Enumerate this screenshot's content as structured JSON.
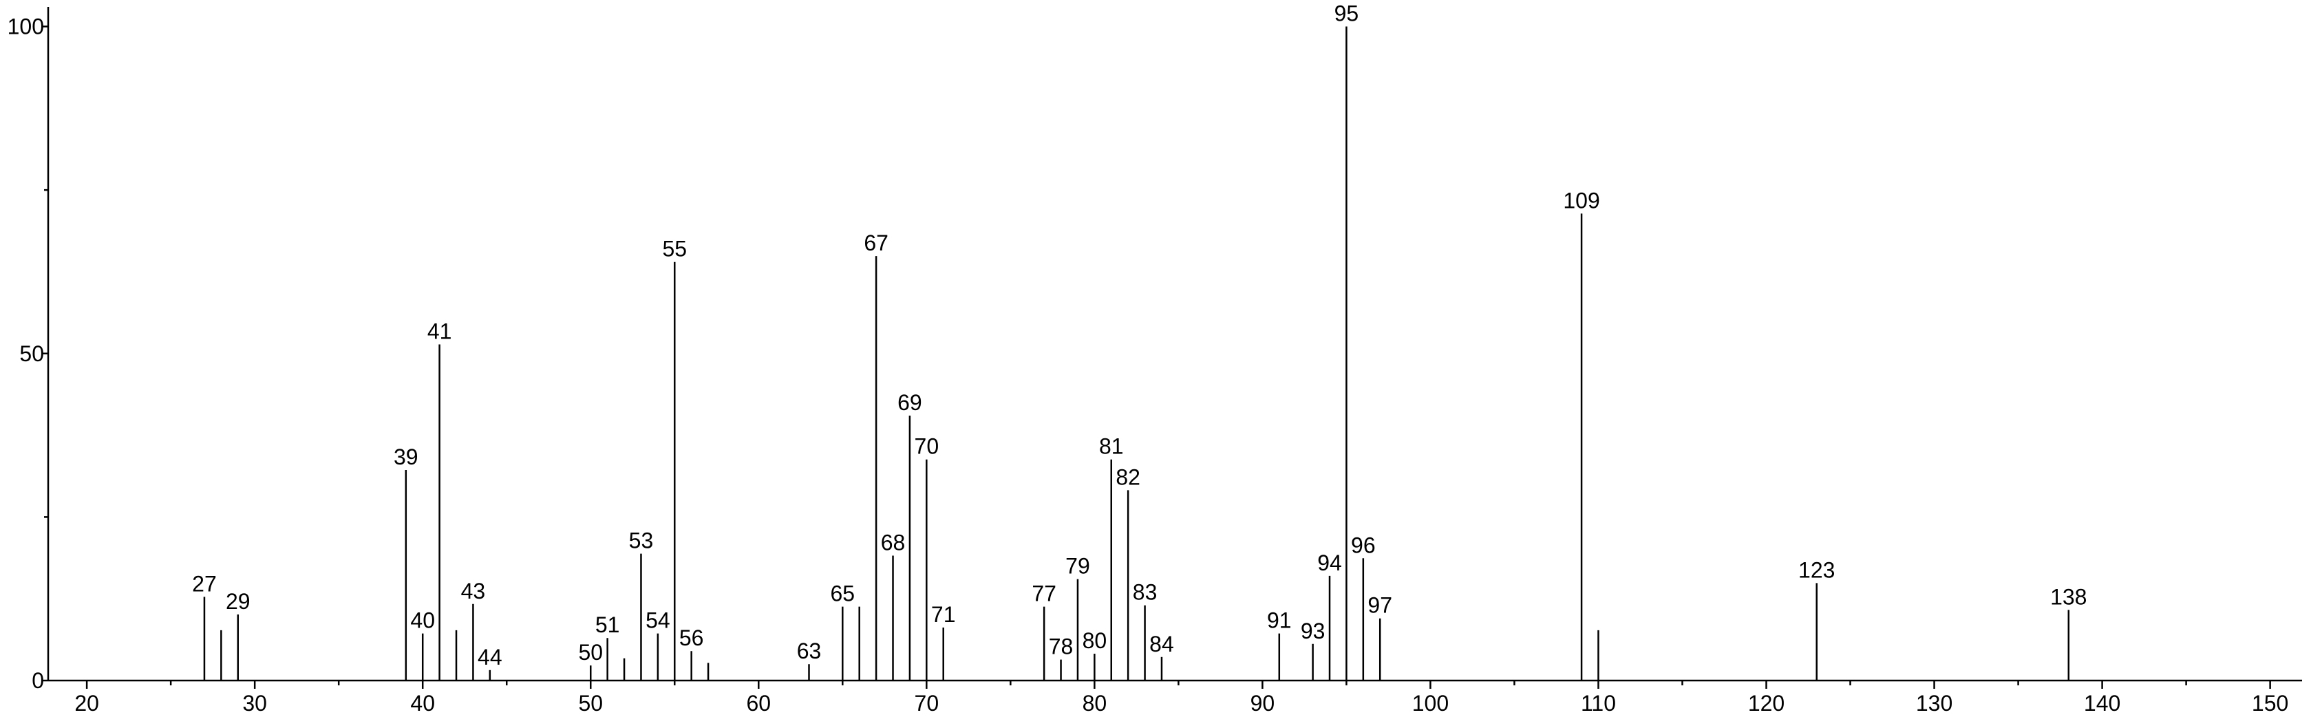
{
  "chart_data": {
    "type": "stem",
    "color": "#000000",
    "x": [
      27,
      28,
      29,
      39,
      40,
      41,
      42,
      43,
      44,
      50,
      51,
      52,
      53,
      54,
      55,
      56,
      57,
      63,
      65,
      66,
      67,
      68,
      69,
      70,
      71,
      77,
      78,
      79,
      80,
      81,
      82,
      83,
      84,
      91,
      93,
      94,
      95,
      96,
      97,
      109,
      110,
      123,
      138
    ],
    "values": [
      12.8,
      7.7,
      10.1,
      32.2,
      7.2,
      51.4,
      7.7,
      11.7,
      1.6,
      2.3,
      6.5,
      3.4,
      19.4,
      7.2,
      64.0,
      4.5,
      2.7,
      2.5,
      11.3,
      11.3,
      64.9,
      19.1,
      40.5,
      33.8,
      8.1,
      11.3,
      3.2,
      15.5,
      4.1,
      33.8,
      29.1,
      11.5,
      3.6,
      7.2,
      5.6,
      16.0,
      100,
      18.7,
      9.5,
      71.4,
      7.7,
      14.9,
      10.8
    ],
    "labeled": [
      true,
      false,
      true,
      true,
      true,
      true,
      false,
      true,
      true,
      true,
      true,
      false,
      true,
      true,
      true,
      true,
      false,
      true,
      true,
      false,
      true,
      true,
      true,
      true,
      true,
      true,
      true,
      true,
      true,
      true,
      true,
      true,
      true,
      true,
      true,
      true,
      true,
      true,
      true,
      true,
      false,
      true,
      true
    ],
    "xlim": [
      17.7,
      151.9
    ],
    "xticks": [
      20,
      30,
      40,
      50,
      60,
      70,
      80,
      90,
      100,
      110,
      120,
      130,
      140,
      150
    ],
    "xminorticks": [
      25,
      35,
      45,
      55,
      65,
      75,
      85,
      95,
      105,
      115,
      125,
      135,
      145
    ],
    "ylim": [
      0,
      103
    ],
    "yticks": [
      0,
      50,
      100
    ],
    "yminorticks": [
      25,
      75
    ]
  }
}
